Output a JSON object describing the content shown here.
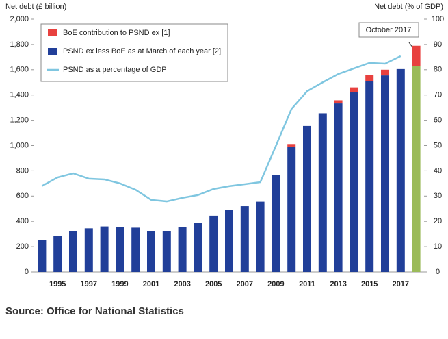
{
  "chart_data": {
    "type": "bar",
    "y_label": "Net debt (£ billion)",
    "y2_label": "Net debt (% of GDP)",
    "annotation": "October 2017",
    "source": "Source: Office for National Statistics",
    "categories": [
      null,
      "1995",
      null,
      "1997",
      null,
      "1999",
      null,
      "2001",
      null,
      "2003",
      null,
      "2005",
      null,
      "2007",
      null,
      "2009",
      null,
      "2011",
      null,
      "2013",
      null,
      "2015",
      null,
      "2017",
      null
    ],
    "series": [
      {
        "name": "BoE contribution to PSND ex [1]",
        "type": "bar",
        "color": "#e8413f",
        "values": [
          0,
          0,
          0,
          0,
          0,
          0,
          0,
          0,
          0,
          0,
          0,
          0,
          0,
          0,
          0,
          0,
          20,
          0,
          0,
          25,
          40,
          45,
          45,
          0,
          160
        ]
      },
      {
        "name": "PSND ex less BoE as at March of each year [2]",
        "type": "bar",
        "color": "#213f99",
        "colors": [
          "#213f99",
          "#213f99",
          "#213f99",
          "#213f99",
          "#213f99",
          "#213f99",
          "#213f99",
          "#213f99",
          "#213f99",
          "#213f99",
          "#213f99",
          "#213f99",
          "#213f99",
          "#213f99",
          "#213f99",
          "#213f99",
          "#213f99",
          "#213f99",
          "#213f99",
          "#213f99",
          "#213f99",
          "#213f99",
          "#213f99",
          "#213f99",
          "#9bbb59"
        ],
        "values": [
          250,
          285,
          320,
          345,
          360,
          355,
          350,
          320,
          320,
          355,
          390,
          445,
          488,
          520,
          555,
          765,
          992,
          1155,
          1255,
          1333,
          1420,
          1512,
          1555,
          1605,
          1630
        ]
      },
      {
        "name": "PSND as a percentage of GDP",
        "type": "line",
        "axis": "y2",
        "color": "#7fc6e0",
        "values": [
          34,
          37.4,
          39,
          36.9,
          36.6,
          35,
          32.5,
          28.5,
          27.9,
          29.3,
          30.4,
          32.8,
          33.9,
          34.7,
          35.5,
          49.9,
          64.5,
          71.5,
          75,
          78.3,
          80.5,
          82.7,
          82.4,
          85.4,
          null
        ]
      }
    ],
    "ylim": [
      0,
      2000
    ],
    "yticks": [
      0,
      200,
      400,
      600,
      800,
      {
        "value": 1000,
        "label": "1,000"
      },
      {
        "value": 1200,
        "label": "1,200"
      },
      {
        "value": 1400,
        "label": "1,400"
      },
      {
        "value": 1600,
        "label": "1,600"
      },
      {
        "value": 1800,
        "label": "1,800"
      },
      {
        "value": 2000,
        "label": "2,000"
      }
    ],
    "y2lim": [
      0,
      100
    ],
    "y2ticks": [
      0,
      10,
      20,
      30,
      40,
      50,
      60,
      70,
      80,
      90,
      100
    ],
    "grid": false
  }
}
